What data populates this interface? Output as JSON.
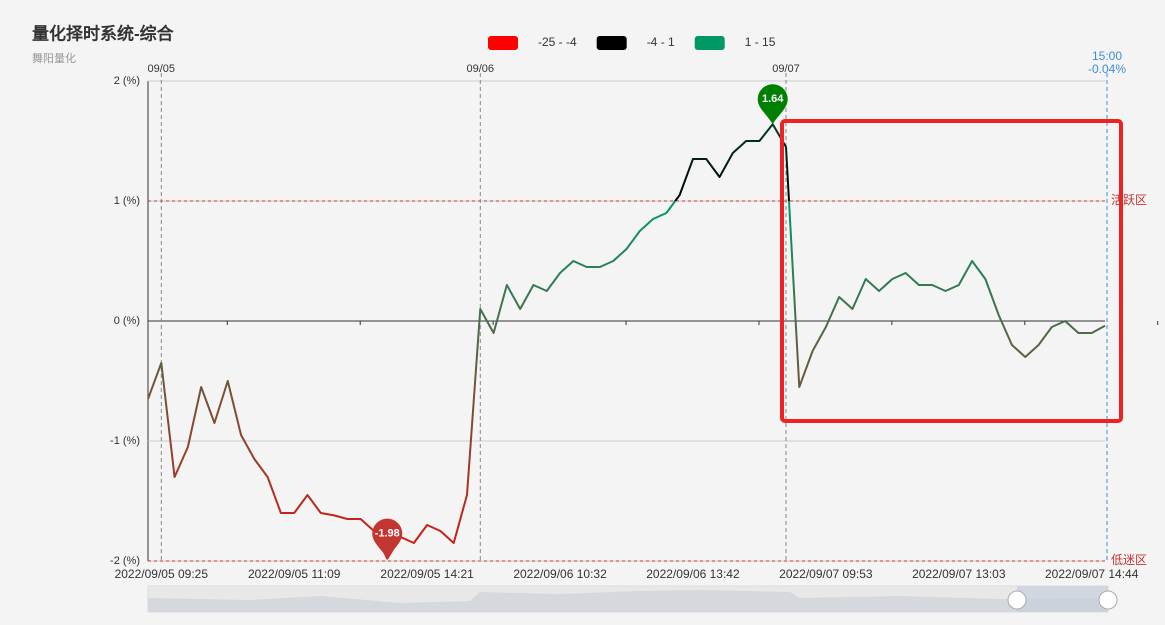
{
  "chart_data": {
    "type": "line",
    "title": "量化择时系统-综合",
    "subtitle": "舞阳量化",
    "categories": [
      null,
      "2022/09/05 09:25",
      null,
      null,
      null,
      null,
      null,
      null,
      null,
      null,
      null,
      "2022/09/05 11:09",
      null,
      null,
      null,
      null,
      null,
      null,
      null,
      null,
      null,
      "2022/09/05 14:21",
      null,
      null,
      null,
      null,
      null,
      null,
      null,
      null,
      null,
      "2022/09/06 10:32",
      null,
      null,
      null,
      null,
      null,
      null,
      null,
      null,
      null,
      "2022/09/06 13:42",
      null,
      null,
      null,
      null,
      null,
      null,
      null,
      null,
      null,
      "2022/09/07 09:53",
      null,
      null,
      null,
      null,
      null,
      null,
      null,
      null,
      null,
      "2022/09/07 13:03",
      null,
      null,
      null,
      null,
      null,
      null,
      null,
      null,
      null,
      "2022/09/07 14:44",
      null
    ],
    "series": [
      {
        "name": "综合",
        "color": "#000000",
        "values": [
          -0.65,
          -0.35,
          -1.3,
          -1.05,
          -0.55,
          -0.85,
          -0.5,
          -0.95,
          -1.15,
          -1.3,
          -1.6,
          -1.6,
          -1.45,
          -1.6,
          -1.62,
          -1.65,
          -1.65,
          -1.75,
          -1.98,
          -1.8,
          -1.85,
          -1.7,
          -1.75,
          -1.85,
          -1.45,
          0.1,
          -0.1,
          0.3,
          0.1,
          0.3,
          0.25,
          0.4,
          0.5,
          0.45,
          0.45,
          0.5,
          0.6,
          0.75,
          0.85,
          0.9,
          1.05,
          1.35,
          1.35,
          1.2,
          1.4,
          1.5,
          1.5,
          1.64,
          1.45,
          -0.55,
          -0.25,
          -0.05,
          0.2,
          0.1,
          0.35,
          0.25,
          0.35,
          0.4,
          0.3,
          0.3,
          0.25,
          0.3,
          0.5,
          0.35,
          0.05,
          -0.2,
          -0.3,
          -0.2,
          -0.05,
          0.0,
          -0.1,
          -0.1,
          -0.04
        ]
      }
    ],
    "ylim": [
      -2,
      2
    ],
    "yticks": [
      {
        "value": -2,
        "label": "-2 (%)"
      },
      {
        "value": -1,
        "label": "-1 (%)"
      },
      {
        "value": 0,
        "label": "0 (%)"
      },
      {
        "value": 1,
        "label": "1 (%)"
      },
      {
        "value": 2,
        "label": "2 (%)"
      }
    ],
    "grid": true,
    "visual_map": [
      {
        "label": "-25 - -4",
        "min": -25,
        "max": -4,
        "color": "#ff0000"
      },
      {
        "label": "-4 - 1",
        "min": -4,
        "max": 1,
        "color": "#000000"
      },
      {
        "label": "1 - 15",
        "min": 1,
        "max": 15,
        "color": "#009966"
      }
    ],
    "mark_lines": [
      {
        "value": 1,
        "label": "活跃区",
        "color": "#c23531"
      },
      {
        "value": -2,
        "label": "低迷区",
        "color": "#c23531"
      }
    ],
    "mark_points": [
      {
        "value": 1.64,
        "at": 47,
        "color": "#008000"
      },
      {
        "value": -1.98,
        "at": 18,
        "color": "#c23531"
      }
    ],
    "day_markers": [
      {
        "label": "09/05",
        "at": 1
      },
      {
        "label": "09/06",
        "at": 25
      },
      {
        "label": "09/07",
        "at": 48
      }
    ],
    "end_marker": {
      "label": "15:00",
      "value": -0.04,
      "value_label": "-0.04%",
      "at": 72
    }
  }
}
